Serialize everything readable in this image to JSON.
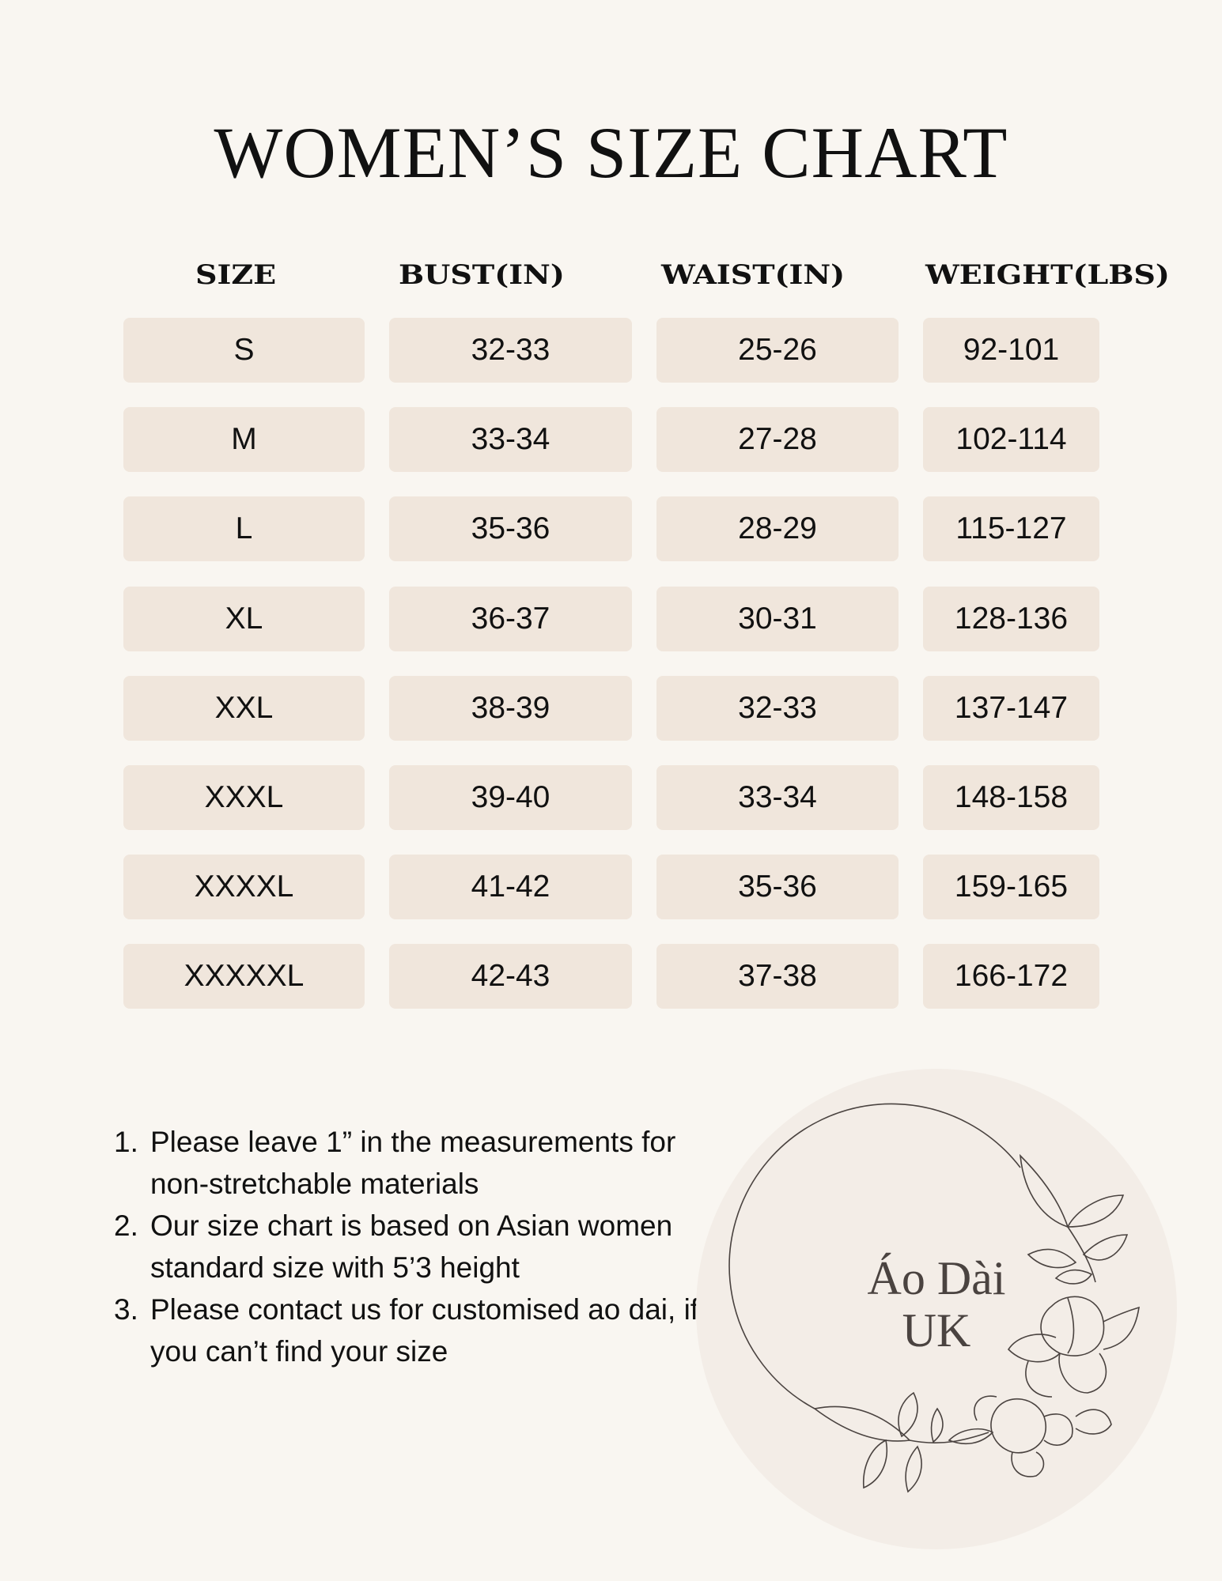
{
  "title": "WOMEN’S SIZE CHART",
  "table": {
    "headers": [
      "SIZE",
      "BUST(IN)",
      "WAIST(IN)",
      "WEIGHT(LBS)"
    ],
    "rows": [
      [
        "S",
        "32-33",
        "25-26",
        "92-101"
      ],
      [
        "M",
        "33-34",
        "27-28",
        "102-114"
      ],
      [
        "L",
        "35-36",
        "28-29",
        "115-127"
      ],
      [
        "XL",
        "36-37",
        "30-31",
        "128-136"
      ],
      [
        "XXL",
        "38-39",
        "32-33",
        "137-147"
      ],
      [
        "XXXL",
        "39-40",
        "33-34",
        "148-158"
      ],
      [
        "XXXXL",
        "41-42",
        "35-36",
        "159-165"
      ],
      [
        "XXXXXL",
        "42-43",
        "37-38",
        "166-172"
      ]
    ]
  },
  "notes": [
    {
      "num": "1.",
      "text": "Please leave 1” in the measurements for non-stretchable materials"
    },
    {
      "num": "2.",
      "text": "Our size chart is based on Asian women standard size with 5’3 height"
    },
    {
      "num": "3.",
      "text": "Please contact us for customised ao dai, if you can’t find your size"
    }
  ],
  "logo": {
    "line1": "Áo Dài",
    "line2": "UK"
  },
  "colors": {
    "background": "#f9f6f1",
    "cell": "#f0e6dc",
    "logo_circle": "#f3ede7",
    "logo_text": "#4a4340"
  }
}
